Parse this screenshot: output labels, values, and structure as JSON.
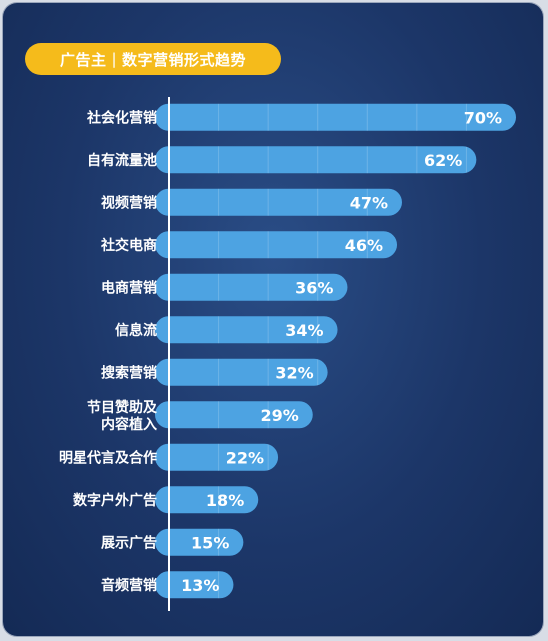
{
  "header": {
    "title_left": "广告主",
    "title_right": "数字营销形式趋势"
  },
  "colors": {
    "background": "#1c3668",
    "bar": "#4da3e2",
    "pill": "#f5bb1b",
    "text": "#ffffff"
  },
  "chart_data": {
    "type": "bar",
    "orientation": "horizontal",
    "categories": [
      "社会化营销",
      "自有流量池",
      "视频营销",
      "社交电商",
      "电商营销",
      "信息流",
      "搜索营销",
      "节目赞助及内容植入",
      "明星代言及合作",
      "数字户外广告",
      "展示广告",
      "音频营销"
    ],
    "category_lines": [
      [
        "社会化营销"
      ],
      [
        "自有流量池"
      ],
      [
        "视频营销"
      ],
      [
        "社交电商"
      ],
      [
        "电商营销"
      ],
      [
        "信息流"
      ],
      [
        "搜索营销"
      ],
      [
        "节目赞助及",
        "内容植入"
      ],
      [
        "明星代言及合作"
      ],
      [
        "数字户外广告"
      ],
      [
        "展示广告"
      ],
      [
        "音频营销"
      ]
    ],
    "values": [
      70,
      62,
      47,
      46,
      36,
      34,
      32,
      29,
      22,
      18,
      15,
      13
    ],
    "value_labels": [
      "70%",
      "62%",
      "47%",
      "46%",
      "36%",
      "34%",
      "32%",
      "29%",
      "22%",
      "18%",
      "15%",
      "13%"
    ],
    "unit": "%",
    "xlim": [
      0,
      70
    ],
    "grid": true
  }
}
